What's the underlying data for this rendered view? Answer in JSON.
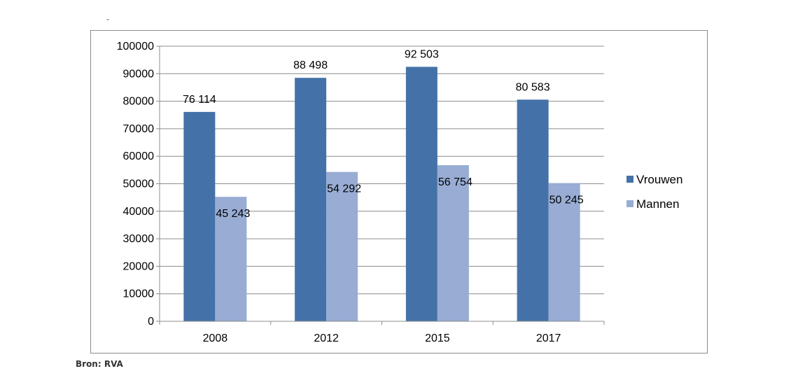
{
  "top_mark": "-",
  "source": "Bron: RVA",
  "colors": {
    "Vrouwen": "#4472a8",
    "Mannen": "#98acd4",
    "grid": "#8c8c8c",
    "axis": "#8c8c8c",
    "text": "#000000"
  },
  "chart_data": {
    "type": "bar",
    "title": "",
    "xlabel": "",
    "ylabel": "",
    "categories": [
      "2008",
      "2012",
      "2015",
      "2017"
    ],
    "series": [
      {
        "name": "Vrouwen",
        "values": [
          76114,
          88498,
          92503,
          80583
        ],
        "labels": [
          "76 114",
          "88 498",
          "92 503",
          "80 583"
        ]
      },
      {
        "name": "Mannen",
        "values": [
          45243,
          54292,
          56754,
          50245
        ],
        "labels": [
          "45 243",
          "54 292",
          "56 754",
          "50 245"
        ]
      }
    ],
    "ylim": [
      0,
      100000
    ],
    "yticks": [
      0,
      10000,
      20000,
      30000,
      40000,
      50000,
      60000,
      70000,
      80000,
      90000,
      100000
    ],
    "ytick_labels": [
      "0",
      "10000",
      "20000",
      "30000",
      "40000",
      "50000",
      "60000",
      "70000",
      "80000",
      "90000",
      "100000"
    ],
    "grid": true,
    "legend": "right"
  }
}
